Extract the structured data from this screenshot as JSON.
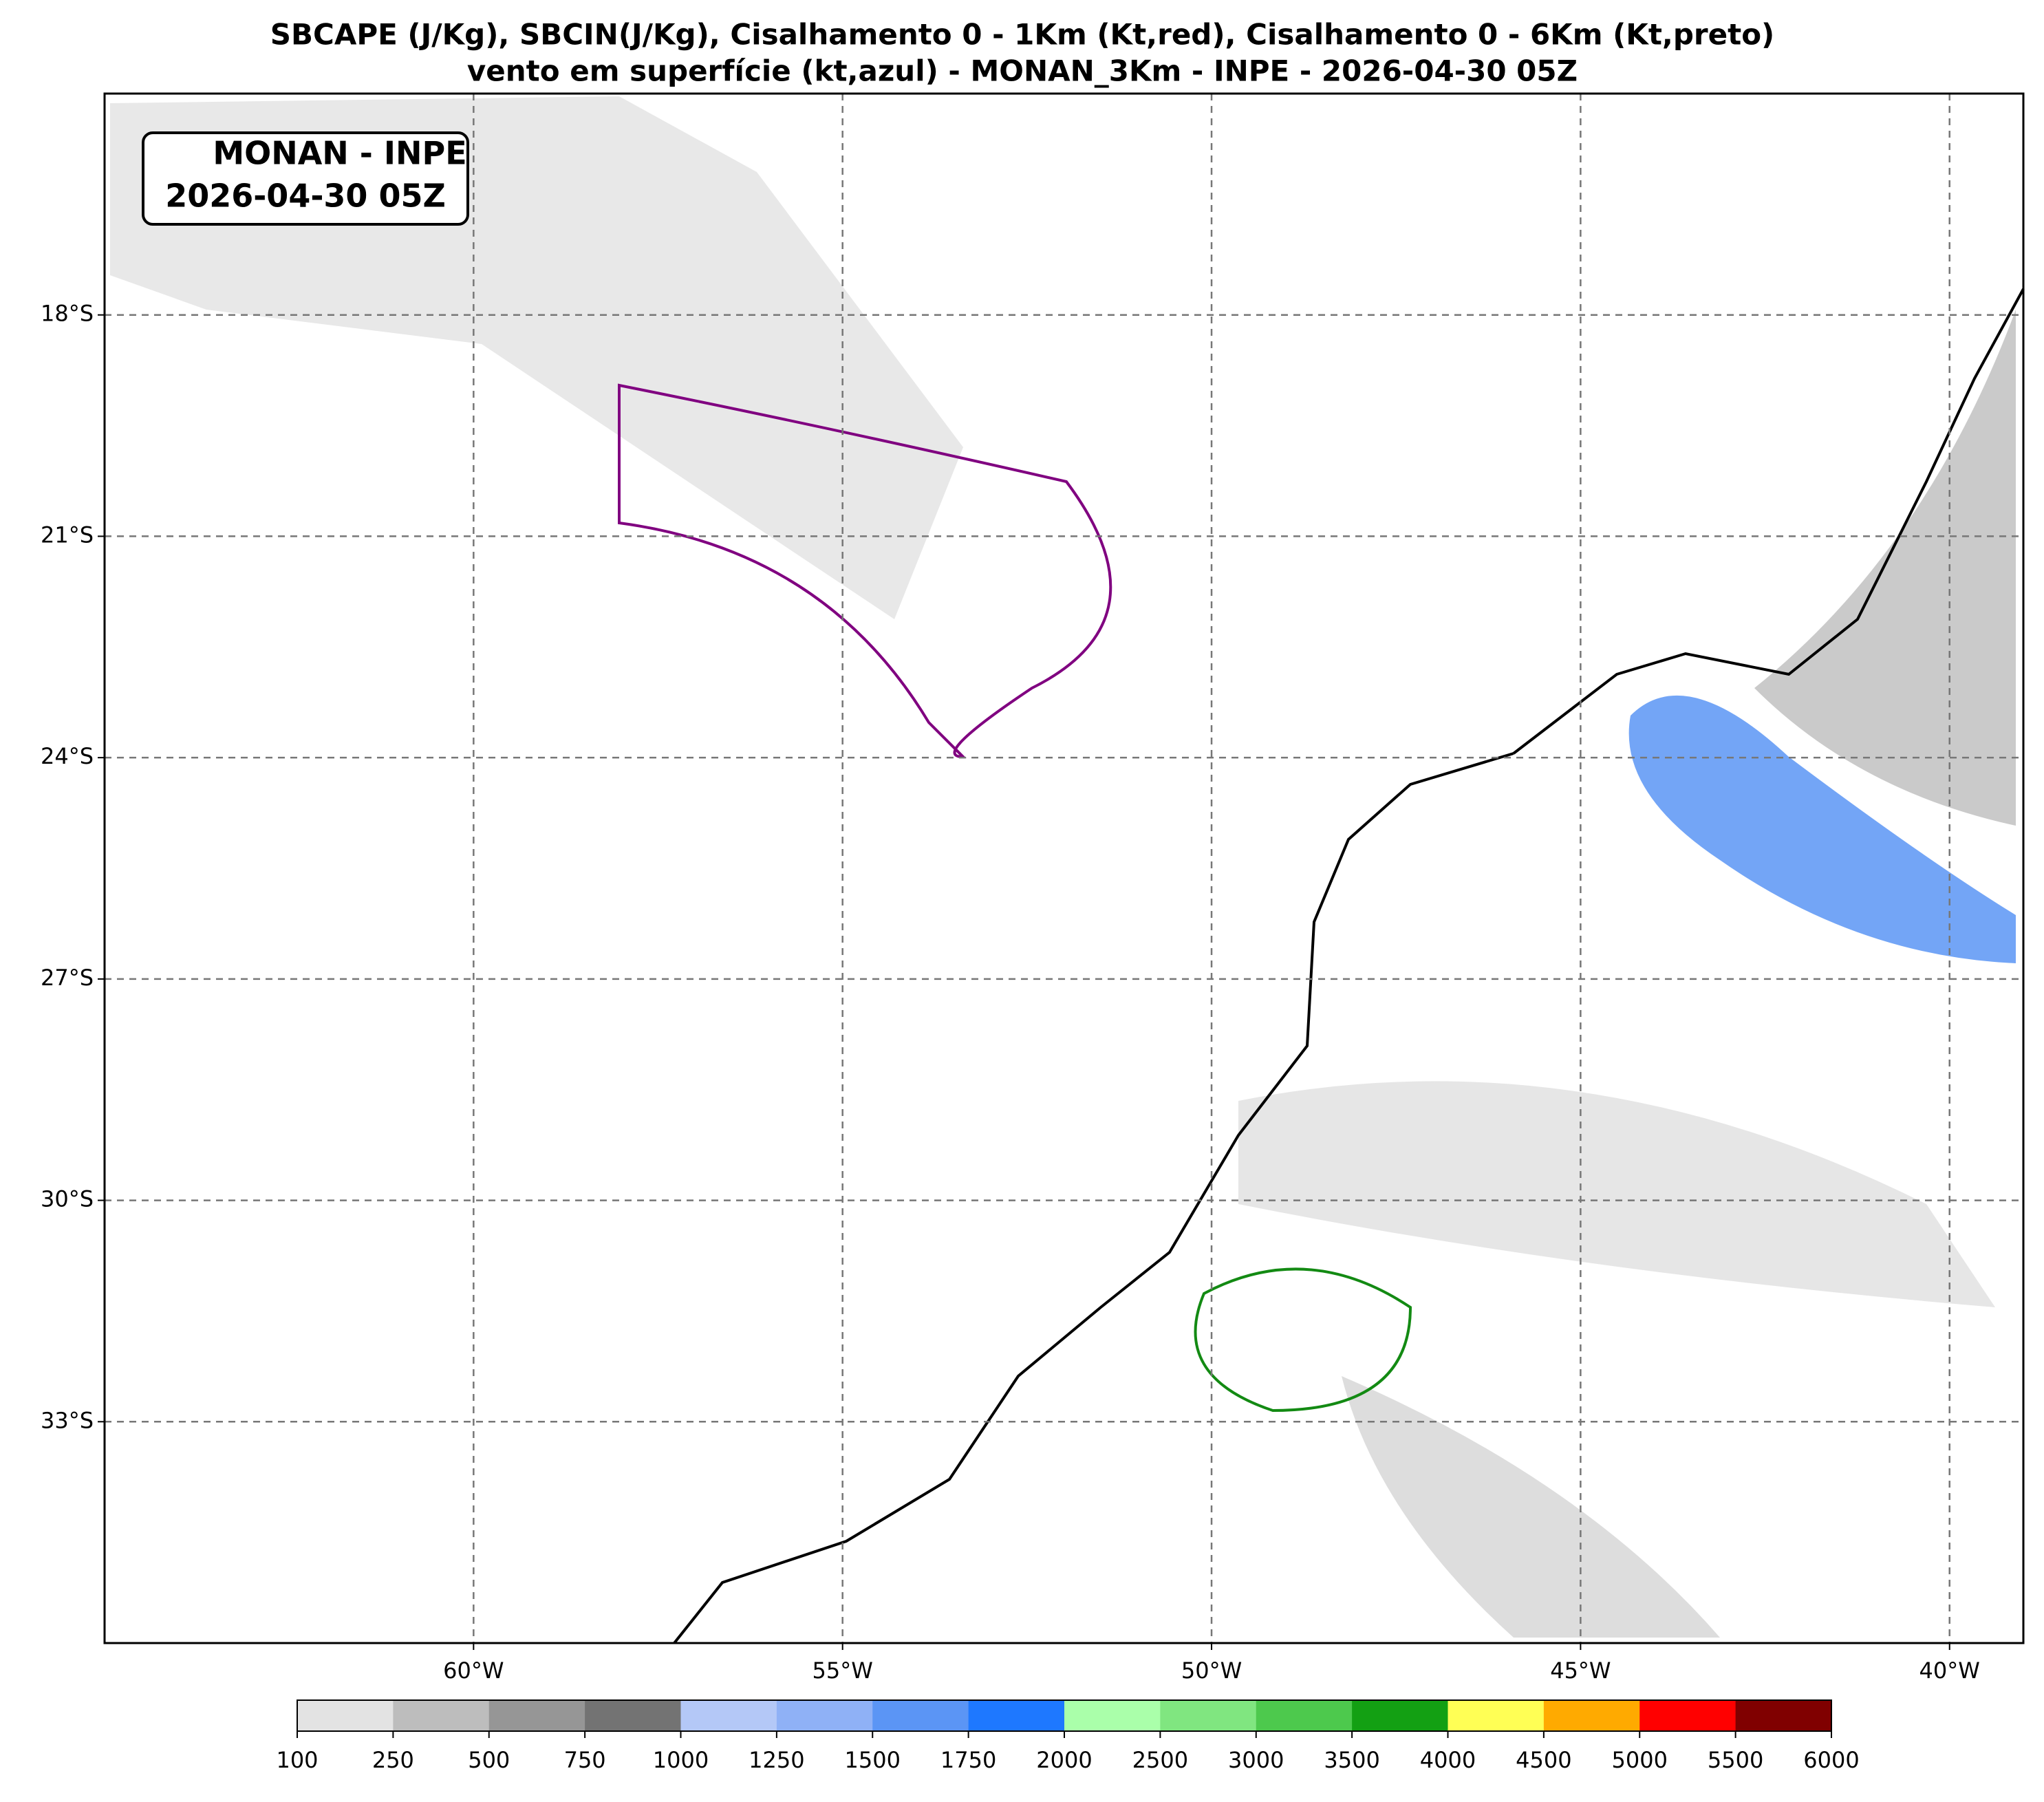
{
  "title": [
    "SBCAPE (J/Kg), SBCIN(J/Kg), Cisalhamento 0 - 1Km (Kt,red), Cisalhamento 0 - 6Km (Kt,preto)",
    "vento em superfície (kt,azul) - MONAN_3Km - INPE - 2026-04-30 05Z"
  ],
  "annotation": [
    "MONAN - INPE",
    "2026-04-30 05Z"
  ],
  "map": {
    "lonlim": [
      -65,
      -39
    ],
    "latlim": [
      -15,
      -36
    ],
    "lon_ticks": [
      {
        "value": -60,
        "label": "60°W"
      },
      {
        "value": -55,
        "label": "55°W"
      },
      {
        "value": -50,
        "label": "50°W"
      },
      {
        "value": -45,
        "label": "45°W"
      },
      {
        "value": -40,
        "label": "40°W"
      }
    ],
    "lat_ticks": [
      {
        "value": -18,
        "label": "18°S"
      },
      {
        "value": -21,
        "label": "21°S"
      },
      {
        "value": -24,
        "label": "24°S"
      },
      {
        "value": -27,
        "label": "27°S"
      },
      {
        "value": -30,
        "label": "30°S"
      },
      {
        "value": -33,
        "label": "33°S"
      }
    ]
  },
  "colorbar": {
    "levels": [
      100,
      250,
      500,
      750,
      1000,
      1250,
      1500,
      1750,
      2000,
      2500,
      3000,
      3500,
      4000,
      4500,
      5000,
      5500,
      6000
    ],
    "colors": [
      "#e3e3e3",
      "#bdbdbd",
      "#969696",
      "#737373",
      "#b4c8f7",
      "#8fb1f6",
      "#5b95f5",
      "#1e78ff",
      "#aaffaa",
      "#80e680",
      "#4dc94d",
      "#13a013",
      "#ffff55",
      "#ffaa00",
      "#ff0000",
      "#800000"
    ]
  }
}
